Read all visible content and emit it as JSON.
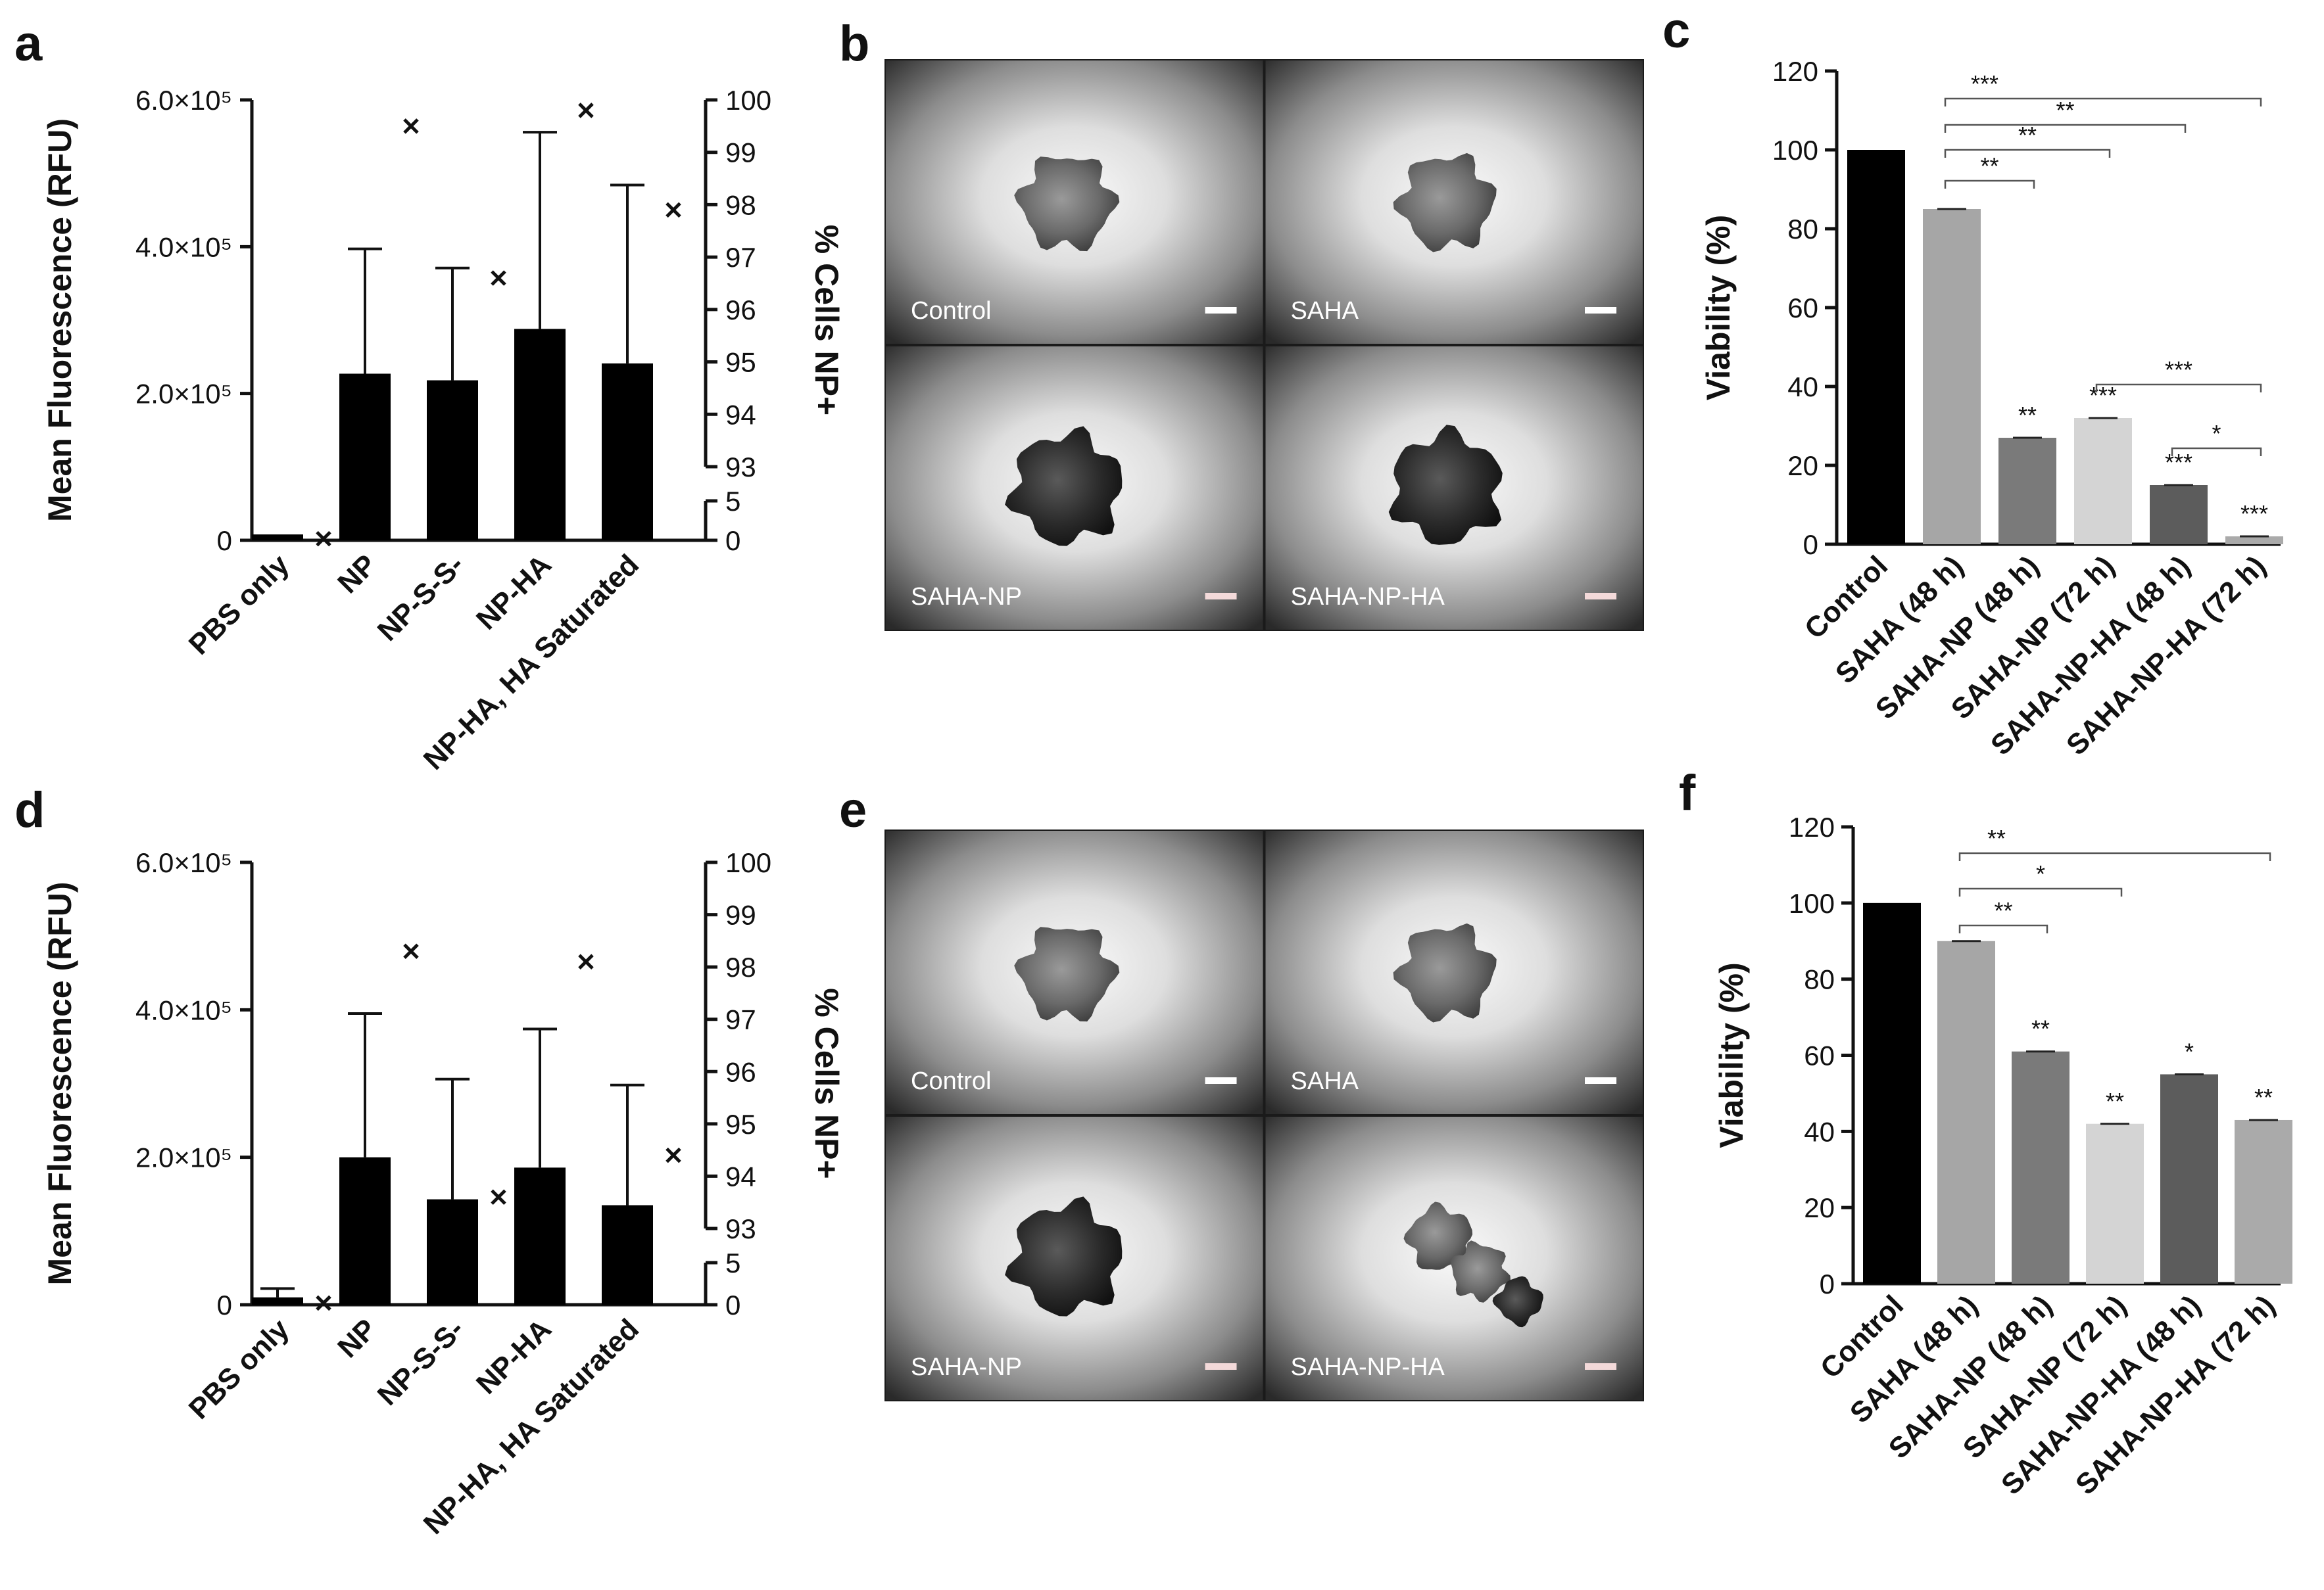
{
  "panels": {
    "a": {
      "letter": "a"
    },
    "b": {
      "letter": "b"
    },
    "c": {
      "letter": "c"
    },
    "d": {
      "letter": "d"
    },
    "e": {
      "letter": "e"
    },
    "f": {
      "letter": "f"
    }
  },
  "chart_data": [
    {
      "panel": "a",
      "type": "bar",
      "categories": [
        "PBS only",
        "NP",
        "NP-S-S-",
        "NP-HA",
        "NP-HA, HA Saturated"
      ],
      "series": [
        {
          "values": [
            8000,
            227000,
            218000,
            288000,
            241000
          ],
          "errors": [
            0,
            170000,
            153000,
            268000,
            243000
          ]
        },
        {
          "values": [
            0.2,
            99.5,
            96.6,
            99.8,
            97.9
          ],
          "marker": "x"
        }
      ],
      "ylabel": "Mean Fluorescence (RFU)",
      "y2label": "% Cells NP+",
      "yticks": [
        "0",
        "2.0×10⁵",
        "4.0×10⁵",
        "6.0×10⁵"
      ],
      "ylim": [
        0,
        600000
      ],
      "y2ticks_lower": [
        "0",
        "5"
      ],
      "y2ticks_upper": [
        "93",
        "94",
        "95",
        "96",
        "97",
        "98",
        "99",
        "100"
      ]
    },
    {
      "panel": "c",
      "type": "bar",
      "categories": [
        "Control",
        "SAHA (48 h)",
        "SAHA-NP (48 h)",
        "SAHA-NP (72 h)",
        "SAHA-NP-HA (48 h)",
        "SAHA-NP-HA (72 h)"
      ],
      "values": [
        100,
        85,
        27,
        32,
        15,
        2
      ],
      "colors": [
        "#000000",
        "#a6a6a6",
        "#7a7a7a",
        "#d4d4d4",
        "#5c5c5c",
        "#aaaaaa"
      ],
      "ylabel": "Viability (%)",
      "ylim": [
        0,
        120
      ],
      "yticks": [
        "0",
        "20",
        "40",
        "60",
        "80",
        "100",
        "120"
      ],
      "bar_annotations": [
        "",
        "",
        "**",
        "***",
        "***",
        "***"
      ],
      "brackets": [
        {
          "from": 1,
          "to": 2,
          "label": "**"
        },
        {
          "from": 1,
          "to": 3,
          "label": "**"
        },
        {
          "from": 1,
          "to": 4,
          "label": "**"
        },
        {
          "from": 1,
          "to": 5,
          "label": "***"
        },
        {
          "from": 3,
          "to": 5,
          "label": "***"
        },
        {
          "from": 4,
          "to": 5,
          "label": "*"
        }
      ]
    },
    {
      "panel": "d",
      "type": "bar",
      "categories": [
        "PBS only",
        "NP",
        "NP-S-S-",
        "NP-HA",
        "NP-HA, HA Saturated"
      ],
      "series": [
        {
          "values": [
            10000,
            200000,
            143000,
            186000,
            135000
          ],
          "errors": [
            12000,
            195000,
            163000,
            188000,
            163000
          ]
        },
        {
          "values": [
            0.2,
            98.3,
            93.6,
            98.1,
            94.4
          ],
          "marker": "x"
        }
      ],
      "ylabel": "Mean Fluorescence (RFU)",
      "y2label": "% Cells NP+",
      "yticks": [
        "0",
        "2.0×10⁵",
        "4.0×10⁵",
        "6.0×10⁵"
      ],
      "ylim": [
        0,
        600000
      ],
      "y2ticks_lower": [
        "0",
        "5"
      ],
      "y2ticks_upper": [
        "93",
        "94",
        "95",
        "96",
        "97",
        "98",
        "99",
        "100"
      ]
    },
    {
      "panel": "f",
      "type": "bar",
      "categories": [
        "Control",
        "SAHA (48 h)",
        "SAHA-NP (48 h)",
        "SAHA-NP (72 h)",
        "SAHA-NP-HA (48 h)",
        "SAHA-NP-HA (72 h)"
      ],
      "values": [
        100,
        90,
        61,
        42,
        55,
        43
      ],
      "colors": [
        "#000000",
        "#a6a6a6",
        "#7a7a7a",
        "#d4d4d4",
        "#5c5c5c",
        "#aaaaaa"
      ],
      "ylabel": "Viability (%)",
      "ylim": [
        0,
        120
      ],
      "yticks": [
        "0",
        "20",
        "40",
        "60",
        "80",
        "100",
        "120"
      ],
      "bar_annotations": [
        "",
        "",
        "**",
        "**",
        "*",
        "**"
      ],
      "brackets": [
        {
          "from": 1,
          "to": 2,
          "label": "**"
        },
        {
          "from": 1,
          "to": 3,
          "label": "*"
        },
        {
          "from": 1,
          "to": 5,
          "label": "**"
        }
      ]
    }
  ],
  "micrographs": {
    "b": [
      {
        "label": "Control",
        "variant": "compact"
      },
      {
        "label": "SAHA",
        "variant": "compact"
      },
      {
        "label": "SAHA-NP",
        "variant": "dark"
      },
      {
        "label": "SAHA-NP-HA",
        "variant": "dark"
      }
    ],
    "e": [
      {
        "label": "Control",
        "variant": "light"
      },
      {
        "label": "SAHA",
        "variant": "light"
      },
      {
        "label": "SAHA-NP",
        "variant": "dark"
      },
      {
        "label": "SAHA-NP-HA",
        "variant": "spread"
      }
    ]
  }
}
